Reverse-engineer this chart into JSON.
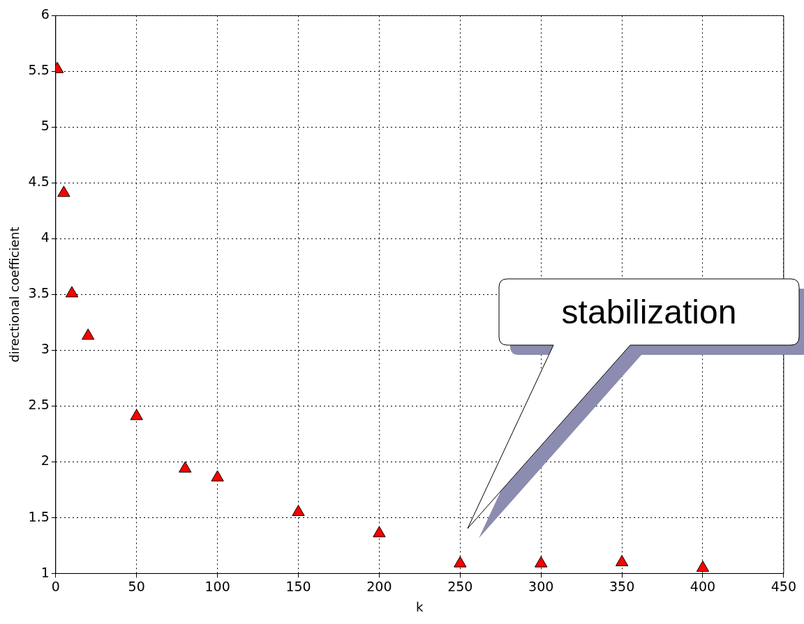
{
  "chart_data": {
    "type": "scatter",
    "xlabel": "k",
    "ylabel": "directional coefficient",
    "x": [
      1,
      5,
      10,
      20,
      50,
      80,
      100,
      150,
      200,
      250,
      300,
      350,
      400
    ],
    "series": [
      {
        "color": "#ff0000",
        "values": [
          5.52,
          4.41,
          3.51,
          3.13,
          2.41,
          1.94,
          1.86,
          1.55,
          1.36,
          1.09,
          1.09,
          1.1,
          1.05
        ]
      }
    ],
    "xlim": [
      0,
      450
    ],
    "xticks": [
      0,
      50,
      100,
      150,
      200,
      250,
      300,
      350,
      400,
      450
    ],
    "ylim": [
      1,
      6
    ],
    "yticks": [
      1,
      1.5,
      2,
      2.5,
      3,
      3.5,
      4,
      4.5,
      5,
      5.5,
      6
    ],
    "grid": true,
    "marker": "triangle",
    "legend": false,
    "annotations": [
      "stabilization"
    ]
  }
}
